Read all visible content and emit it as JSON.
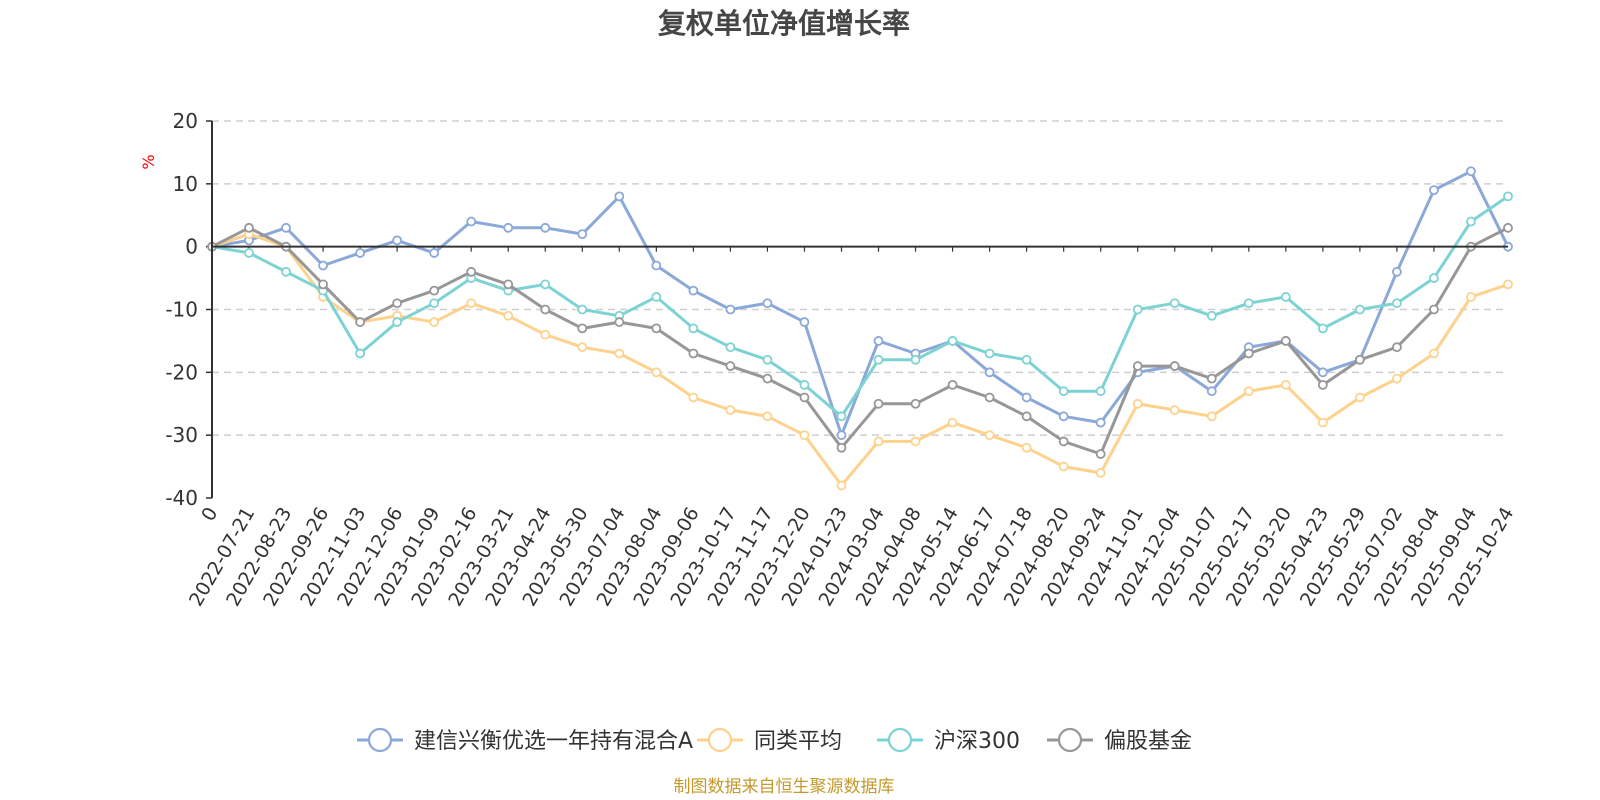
{
  "chart_data": {
    "type": "line",
    "title": "复权单位净值增长率",
    "ylabel": "%",
    "ylim": [
      -40,
      20
    ],
    "yticks": [
      20,
      10,
      0,
      -10,
      -20,
      -30,
      -40
    ],
    "grid": true,
    "legend_position": "bottom",
    "xtick_labels": [
      "0",
      "2022-07-21",
      "2022-08-23",
      "2022-09-26",
      "2022-11-03",
      "2022-12-06",
      "2023-01-09",
      "2023-02-16",
      "2023-03-21",
      "2023-04-24",
      "2023-05-30",
      "2023-07-04",
      "2023-08-04",
      "2023-09-06",
      "2023-10-17",
      "2023-11-17",
      "2023-12-20",
      "2024-01-23",
      "2024-03-04",
      "2024-04-08",
      "2024-05-14",
      "2024-06-17",
      "2024-07-18",
      "2024-08-20",
      "2024-09-24",
      "2024-11-01",
      "2024-12-04",
      "2025-01-07",
      "2025-02-17",
      "2025-03-20",
      "2025-04-23",
      "2025-05-29",
      "2025-07-02",
      "2025-08-04",
      "2025-09-04",
      "2025-10-24"
    ],
    "x_index": [
      0,
      1,
      2,
      3,
      4,
      5,
      6,
      7,
      8,
      9,
      10,
      11,
      12,
      13,
      14,
      15,
      16,
      17,
      18,
      19,
      20,
      21,
      22,
      23,
      24,
      25,
      26,
      27,
      28,
      29,
      30,
      31,
      32,
      33,
      34,
      35
    ],
    "series": [
      {
        "name": "建信兴衡优选一年持有混合A",
        "color": "#8aa8d8",
        "values": [
          0,
          1,
          3,
          -3,
          -1,
          1,
          -1,
          4,
          3,
          3,
          2,
          8,
          -3,
          -7,
          -10,
          -9,
          -12,
          -30,
          -15,
          -17,
          -15,
          -20,
          -24,
          -27,
          -28,
          -20,
          -19,
          -23,
          -16,
          -15,
          -20,
          -18,
          -4,
          9,
          12,
          0
        ]
      },
      {
        "name": "同类平均",
        "color": "#fdd28c",
        "values": [
          0,
          2,
          0,
          -8,
          -12,
          -11,
          -12,
          -9,
          -11,
          -14,
          -16,
          -17,
          -20,
          -24,
          -26,
          -27,
          -30,
          -38,
          -31,
          -31,
          -28,
          -30,
          -32,
          -35,
          -36,
          -25,
          -26,
          -27,
          -23,
          -22,
          -28,
          -24,
          -21,
          -17,
          -8,
          -6
        ]
      },
      {
        "name": "沪深300",
        "color": "#7dd3d3",
        "values": [
          0,
          -1,
          -4,
          -7,
          -17,
          -12,
          -9,
          -5,
          -7,
          -6,
          -10,
          -11,
          -8,
          -13,
          -16,
          -18,
          -22,
          -27,
          -18,
          -18,
          -15,
          -17,
          -18,
          -23,
          -23,
          -10,
          -9,
          -11,
          -9,
          -8,
          -13,
          -10,
          -9,
          -5,
          4,
          8
        ]
      },
      {
        "name": "偏股基金",
        "color": "#979797",
        "values": [
          0,
          3,
          0,
          -6,
          -12,
          -9,
          -7,
          -4,
          -6,
          -10,
          -13,
          -12,
          -13,
          -17,
          -19,
          -21,
          -24,
          -32,
          -25,
          -25,
          -22,
          -24,
          -27,
          -31,
          -33,
          -19,
          -19,
          -21,
          -17,
          -15,
          -22,
          -18,
          -16,
          -10,
          0,
          3
        ]
      }
    ]
  },
  "source_text": "制图数据来自恒生聚源数据库"
}
